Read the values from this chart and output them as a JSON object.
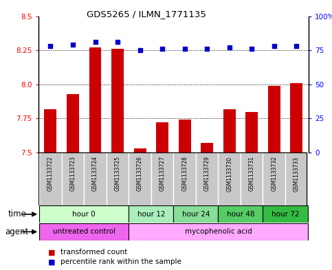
{
  "title": "GDS5265 / ILMN_1771135",
  "samples": [
    "GSM1133722",
    "GSM1133723",
    "GSM1133724",
    "GSM1133725",
    "GSM1133726",
    "GSM1133727",
    "GSM1133728",
    "GSM1133729",
    "GSM1133730",
    "GSM1133731",
    "GSM1133732",
    "GSM1133733"
  ],
  "bar_values": [
    7.82,
    7.93,
    8.27,
    8.26,
    7.53,
    7.72,
    7.74,
    7.57,
    7.82,
    7.8,
    7.99,
    8.01
  ],
  "dot_values": [
    78,
    79,
    81,
    81,
    75,
    76,
    76,
    76,
    77,
    76,
    78,
    78
  ],
  "ylim_left": [
    7.5,
    8.5
  ],
  "ylim_right": [
    0,
    100
  ],
  "yticks_left": [
    7.5,
    7.75,
    8.0,
    8.25,
    8.5
  ],
  "yticks_right": [
    0,
    25,
    50,
    75,
    100
  ],
  "bar_color": "#cc0000",
  "dot_color": "#0000cc",
  "gridline_values": [
    7.75,
    8.0,
    8.25
  ],
  "time_groups": [
    {
      "label": "hour 0",
      "start": 0,
      "end": 4,
      "color": "#ccffcc"
    },
    {
      "label": "hour 12",
      "start": 4,
      "end": 6,
      "color": "#aaeebb"
    },
    {
      "label": "hour 24",
      "start": 6,
      "end": 8,
      "color": "#88dd99"
    },
    {
      "label": "hour 48",
      "start": 8,
      "end": 10,
      "color": "#55cc66"
    },
    {
      "label": "hour 72",
      "start": 10,
      "end": 12,
      "color": "#33bb44"
    }
  ],
  "agent_groups": [
    {
      "label": "untreated control",
      "start": 0,
      "end": 4,
      "color": "#ee66ee"
    },
    {
      "label": "mycophenolic acid",
      "start": 4,
      "end": 12,
      "color": "#ffaaff"
    }
  ],
  "tick_bg_color": "#c8c8c8",
  "legend_red_label": "transformed count",
  "legend_blue_label": "percentile rank within the sample",
  "time_label": "time",
  "agent_label": "agent",
  "border_color": "#888888"
}
